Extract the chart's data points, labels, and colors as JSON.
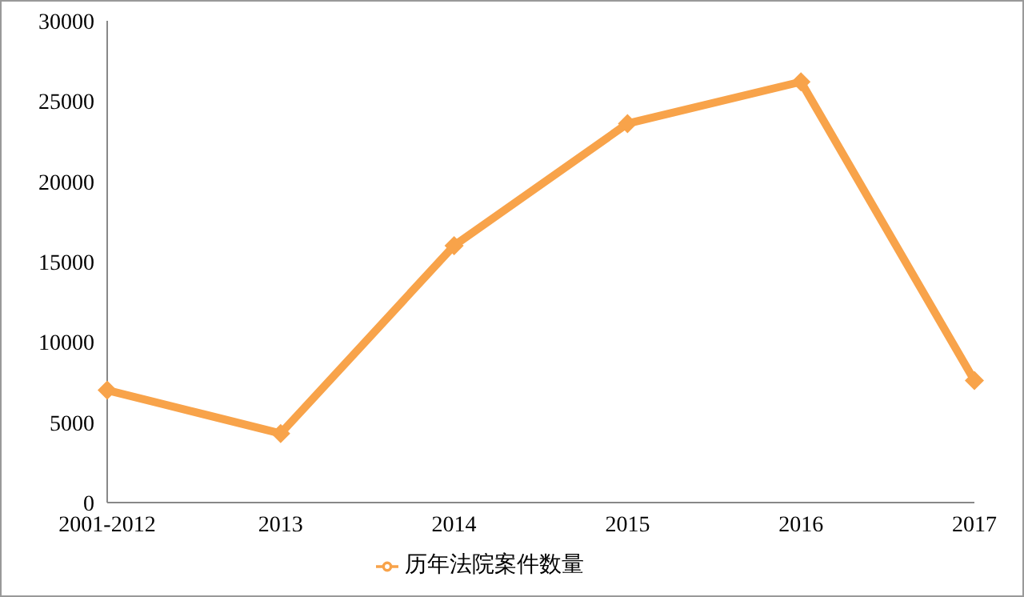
{
  "chart_data": {
    "type": "line",
    "categories": [
      "2001-2012",
      "2013",
      "2014",
      "2015",
      "2016",
      "2017"
    ],
    "series": [
      {
        "name": "历年法院案件数量",
        "color": "#f8a34a",
        "values": [
          7000,
          4300,
          16000,
          23600,
          26200,
          7600
        ]
      }
    ],
    "ylim": [
      0,
      30000
    ],
    "yticks": [
      0,
      5000,
      10000,
      15000,
      20000,
      25000,
      30000
    ],
    "grid": false,
    "legend": "bottom",
    "marker": "diamond",
    "line_style": "solid"
  }
}
